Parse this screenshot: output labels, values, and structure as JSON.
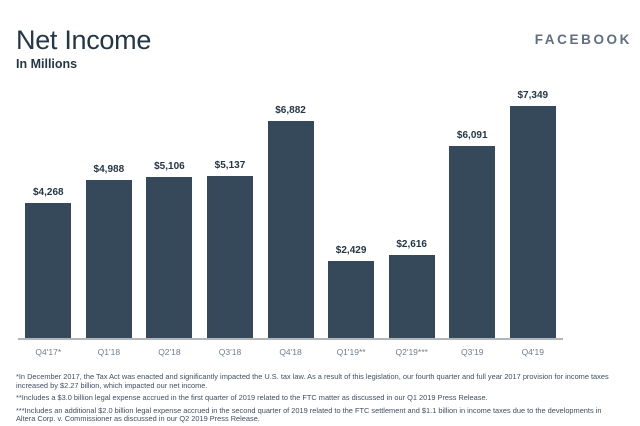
{
  "brand": {
    "logo_text": "FACEBOOK"
  },
  "header": {
    "title": "Net Income",
    "subtitle": "In Millions"
  },
  "chart_data": {
    "type": "bar",
    "title": "Net Income",
    "subtitle": "In Millions",
    "categories": [
      "Q4'17*",
      "Q1'18",
      "Q2'18",
      "Q3'18",
      "Q4'18",
      "Q1'19**",
      "Q2'19***",
      "Q3'19",
      "Q4'19"
    ],
    "values": [
      4268,
      4988,
      5106,
      5137,
      6882,
      2429,
      2616,
      6091,
      7349
    ],
    "value_labels": [
      "$4,268",
      "$4,988",
      "$5,106",
      "$5,137",
      "$6,882",
      "$2,429",
      "$2,616",
      "$6,091",
      "$7,349"
    ],
    "xlabel": "",
    "ylabel": "",
    "ylim": [
      0,
      7500
    ],
    "grid": false,
    "legend": false,
    "bar_color": "#35495a",
    "value_label_color": "#243746",
    "tick_label_color": "#6f7d8c",
    "axis_line_color": "#b3b6b8"
  },
  "footnotes": [
    "*In December 2017, the Tax Act was enacted and significantly impacted the U.S. tax law. As a result of this legislation, our fourth quarter and full year 2017 provision for income taxes increased by $2.27 billion, which impacted our net income.",
    "**Includes a $3.0 billion legal expense accrued in the first quarter of 2019 related to the FTC matter as discussed in our Q1 2019 Press Release.",
    "***Includes an additional $2.0 billion legal expense accrued in the second quarter of 2019 related to the FTC settlement and $1.1 billion in income taxes due to the developments in Altera Corp. v. Commissioner as discussed in our Q2 2019 Press Release."
  ],
  "colors": {
    "background": "#ffffff",
    "brand_logo": "#5f6e81",
    "title": "#243746",
    "footnote": "#3f4e63"
  }
}
